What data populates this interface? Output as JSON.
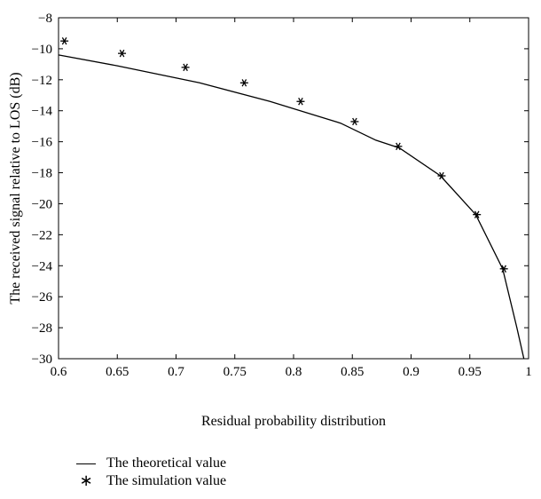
{
  "chart_data": {
    "type": "line",
    "title": "",
    "xlabel": "Residual probability distribution",
    "ylabel": "The received signal relative to LOS (dB)",
    "xlim": [
      0.6,
      1.0
    ],
    "ylim": [
      -30,
      -8
    ],
    "xticks": [
      0.6,
      0.65,
      0.7,
      0.75,
      0.8,
      0.85,
      0.9,
      0.95,
      1
    ],
    "xtick_labels": [
      "0.6",
      "0.65",
      "0.7",
      "0.75",
      "0.8",
      "0.85",
      "0.9",
      "0.95",
      "1"
    ],
    "yticks": [
      -30,
      -28,
      -26,
      -24,
      -22,
      -20,
      -18,
      -16,
      -14,
      -12,
      -10,
      -8
    ],
    "ytick_labels": [
      "−30",
      "−28",
      "−26",
      "−24",
      "−22",
      "−20",
      "−18",
      "−16",
      "−14",
      "−12",
      "−10",
      "−8"
    ],
    "grid": false,
    "legend_position": "below",
    "series": [
      {
        "name": "The theoretical value",
        "style": "line",
        "color": "#000000",
        "x": [
          0.6,
          0.65,
          0.72,
          0.78,
          0.84,
          0.87,
          0.89,
          0.925,
          0.955,
          0.978,
          0.99,
          0.996
        ],
        "y": [
          -10.4,
          -11.1,
          -12.2,
          -13.4,
          -14.8,
          -15.9,
          -16.4,
          -18.2,
          -20.7,
          -24.2,
          -28.0,
          -30.0
        ]
      },
      {
        "name": "The simulation value",
        "style": "marker",
        "marker": "star",
        "color": "#000000",
        "x": [
          0.605,
          0.654,
          0.708,
          0.758,
          0.806,
          0.852,
          0.889,
          0.926,
          0.956,
          0.979
        ],
        "y": [
          -9.5,
          -10.3,
          -11.2,
          -12.2,
          -13.4,
          -14.7,
          -16.3,
          -18.2,
          -20.7,
          -24.2
        ]
      }
    ]
  }
}
